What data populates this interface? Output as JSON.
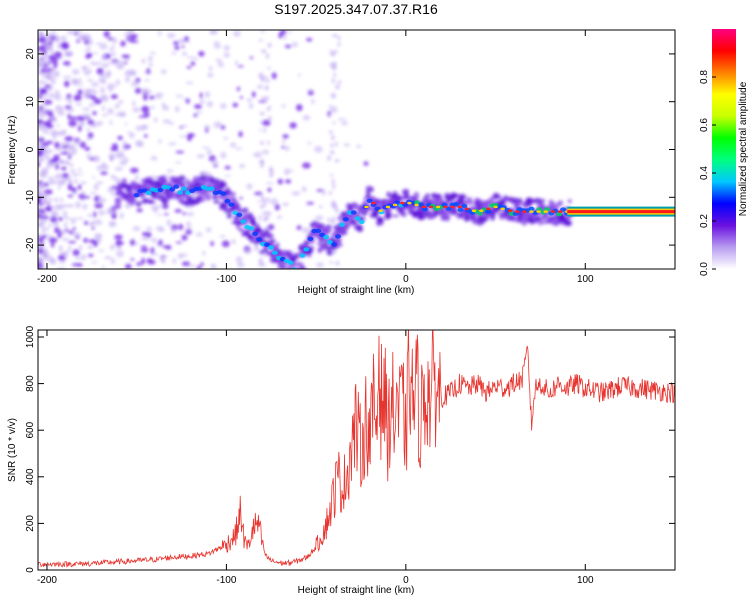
{
  "title": "S197.2025.347.07.37.R16",
  "chart_data": [
    {
      "type": "heatmap",
      "title": "S197.2025.347.07.37.R16",
      "xlabel": "Height of straight line (km)",
      "ylabel": "Frequency (Hz)",
      "xlim": [
        -205,
        150
      ],
      "ylim": [
        -25,
        25
      ],
      "xticks": [
        -200,
        -100,
        0,
        100
      ],
      "xtick_labels": [
        "-200",
        "-100",
        "0",
        "100"
      ],
      "yticks": [
        20,
        10,
        0,
        -10,
        -20
      ],
      "ytick_labels": [
        "20",
        "10",
        "0",
        "-10",
        "-20"
      ],
      "ridge": {
        "name": "dominant frequency",
        "x": [
          -150,
          -130,
          -120,
          -110,
          -100,
          -95,
          -90,
          -85,
          -80,
          -75,
          -70,
          -65,
          -60,
          -55,
          -50,
          -45,
          -40,
          -35,
          -30,
          -25,
          -20,
          -15,
          -10,
          0,
          10,
          20,
          30,
          40,
          50,
          60,
          70,
          80,
          90,
          150
        ],
        "y": [
          -9,
          -8,
          -9,
          -8,
          -10,
          -13,
          -15,
          -17,
          -19,
          -21,
          -23,
          -24,
          -25,
          -20,
          -17,
          -18,
          -20,
          -15,
          -13,
          -15,
          -10,
          -13,
          -12,
          -11,
          -12,
          -12,
          -12,
          -13,
          -12,
          -13,
          -13,
          -13,
          -13,
          -13
        ]
      },
      "colorbar": {
        "label": "Normalized spectral amplitude",
        "range": [
          0,
          1
        ],
        "ticks": [
          0.0,
          0.2,
          0.4,
          0.6,
          0.8
        ],
        "tick_labels": [
          "0.0",
          "0.2",
          "0.4",
          "0.6",
          "0.8"
        ],
        "colors": [
          "#ffffff",
          "#b89cf0",
          "#6a10e0",
          "#0000ff",
          "#00c8ff",
          "#00ff80",
          "#00ff00",
          "#c8ff00",
          "#ffff00",
          "#ff8000",
          "#ff0000",
          "#ff0080"
        ]
      }
    },
    {
      "type": "line",
      "xlabel": "Height of straight line (km)",
      "ylabel": "SNR (10 * v/v)",
      "xlim": [
        -205,
        150
      ],
      "ylim": [
        0,
        1030
      ],
      "xticks": [
        -200,
        -100,
        0,
        100
      ],
      "xtick_labels": [
        "-200",
        "-100",
        "0",
        "100"
      ],
      "yticks": [
        0,
        200,
        400,
        600,
        800,
        1000
      ],
      "ytick_labels": [
        "0",
        "200",
        "400",
        "600",
        "800",
        "1000"
      ],
      "series": [
        {
          "name": "SNR",
          "color": "#e8342e",
          "x": [
            -205,
            -190,
            -175,
            -160,
            -150,
            -140,
            -130,
            -120,
            -110,
            -105,
            -100,
            -95,
            -92,
            -90,
            -88,
            -85,
            -82,
            -80,
            -78,
            -75,
            -70,
            -65,
            -60,
            -55,
            -50,
            -45,
            -42,
            -40,
            -38,
            -35,
            -32,
            -30,
            -28,
            -25,
            -22,
            -20,
            -18,
            -16,
            -15,
            -14,
            -12,
            -10,
            -8,
            -6,
            -5,
            -4,
            -2,
            0,
            2,
            4,
            6,
            8,
            10,
            12,
            14,
            16,
            18,
            20,
            25,
            30,
            35,
            40,
            45,
            50,
            55,
            60,
            65,
            68,
            70,
            72,
            75,
            80,
            85,
            90,
            95,
            100,
            110,
            120,
            130,
            140,
            150
          ],
          "values": [
            25,
            25,
            28,
            35,
            40,
            45,
            55,
            60,
            70,
            90,
            110,
            150,
            250,
            120,
            100,
            180,
            200,
            110,
            60,
            40,
            30,
            30,
            40,
            55,
            100,
            180,
            260,
            330,
            400,
            350,
            450,
            550,
            620,
            520,
            650,
            560,
            700,
            620,
            1000,
            720,
            760,
            580,
            740,
            620,
            800,
            650,
            720,
            560,
            880,
            700,
            800,
            620,
            760,
            780,
            720,
            820,
            760,
            740,
            760,
            800,
            780,
            800,
            760,
            790,
            780,
            800,
            820,
            950,
            620,
            780,
            800,
            760,
            800,
            780,
            800,
            780,
            760,
            790,
            780,
            770,
            760
          ]
        }
      ]
    }
  ]
}
